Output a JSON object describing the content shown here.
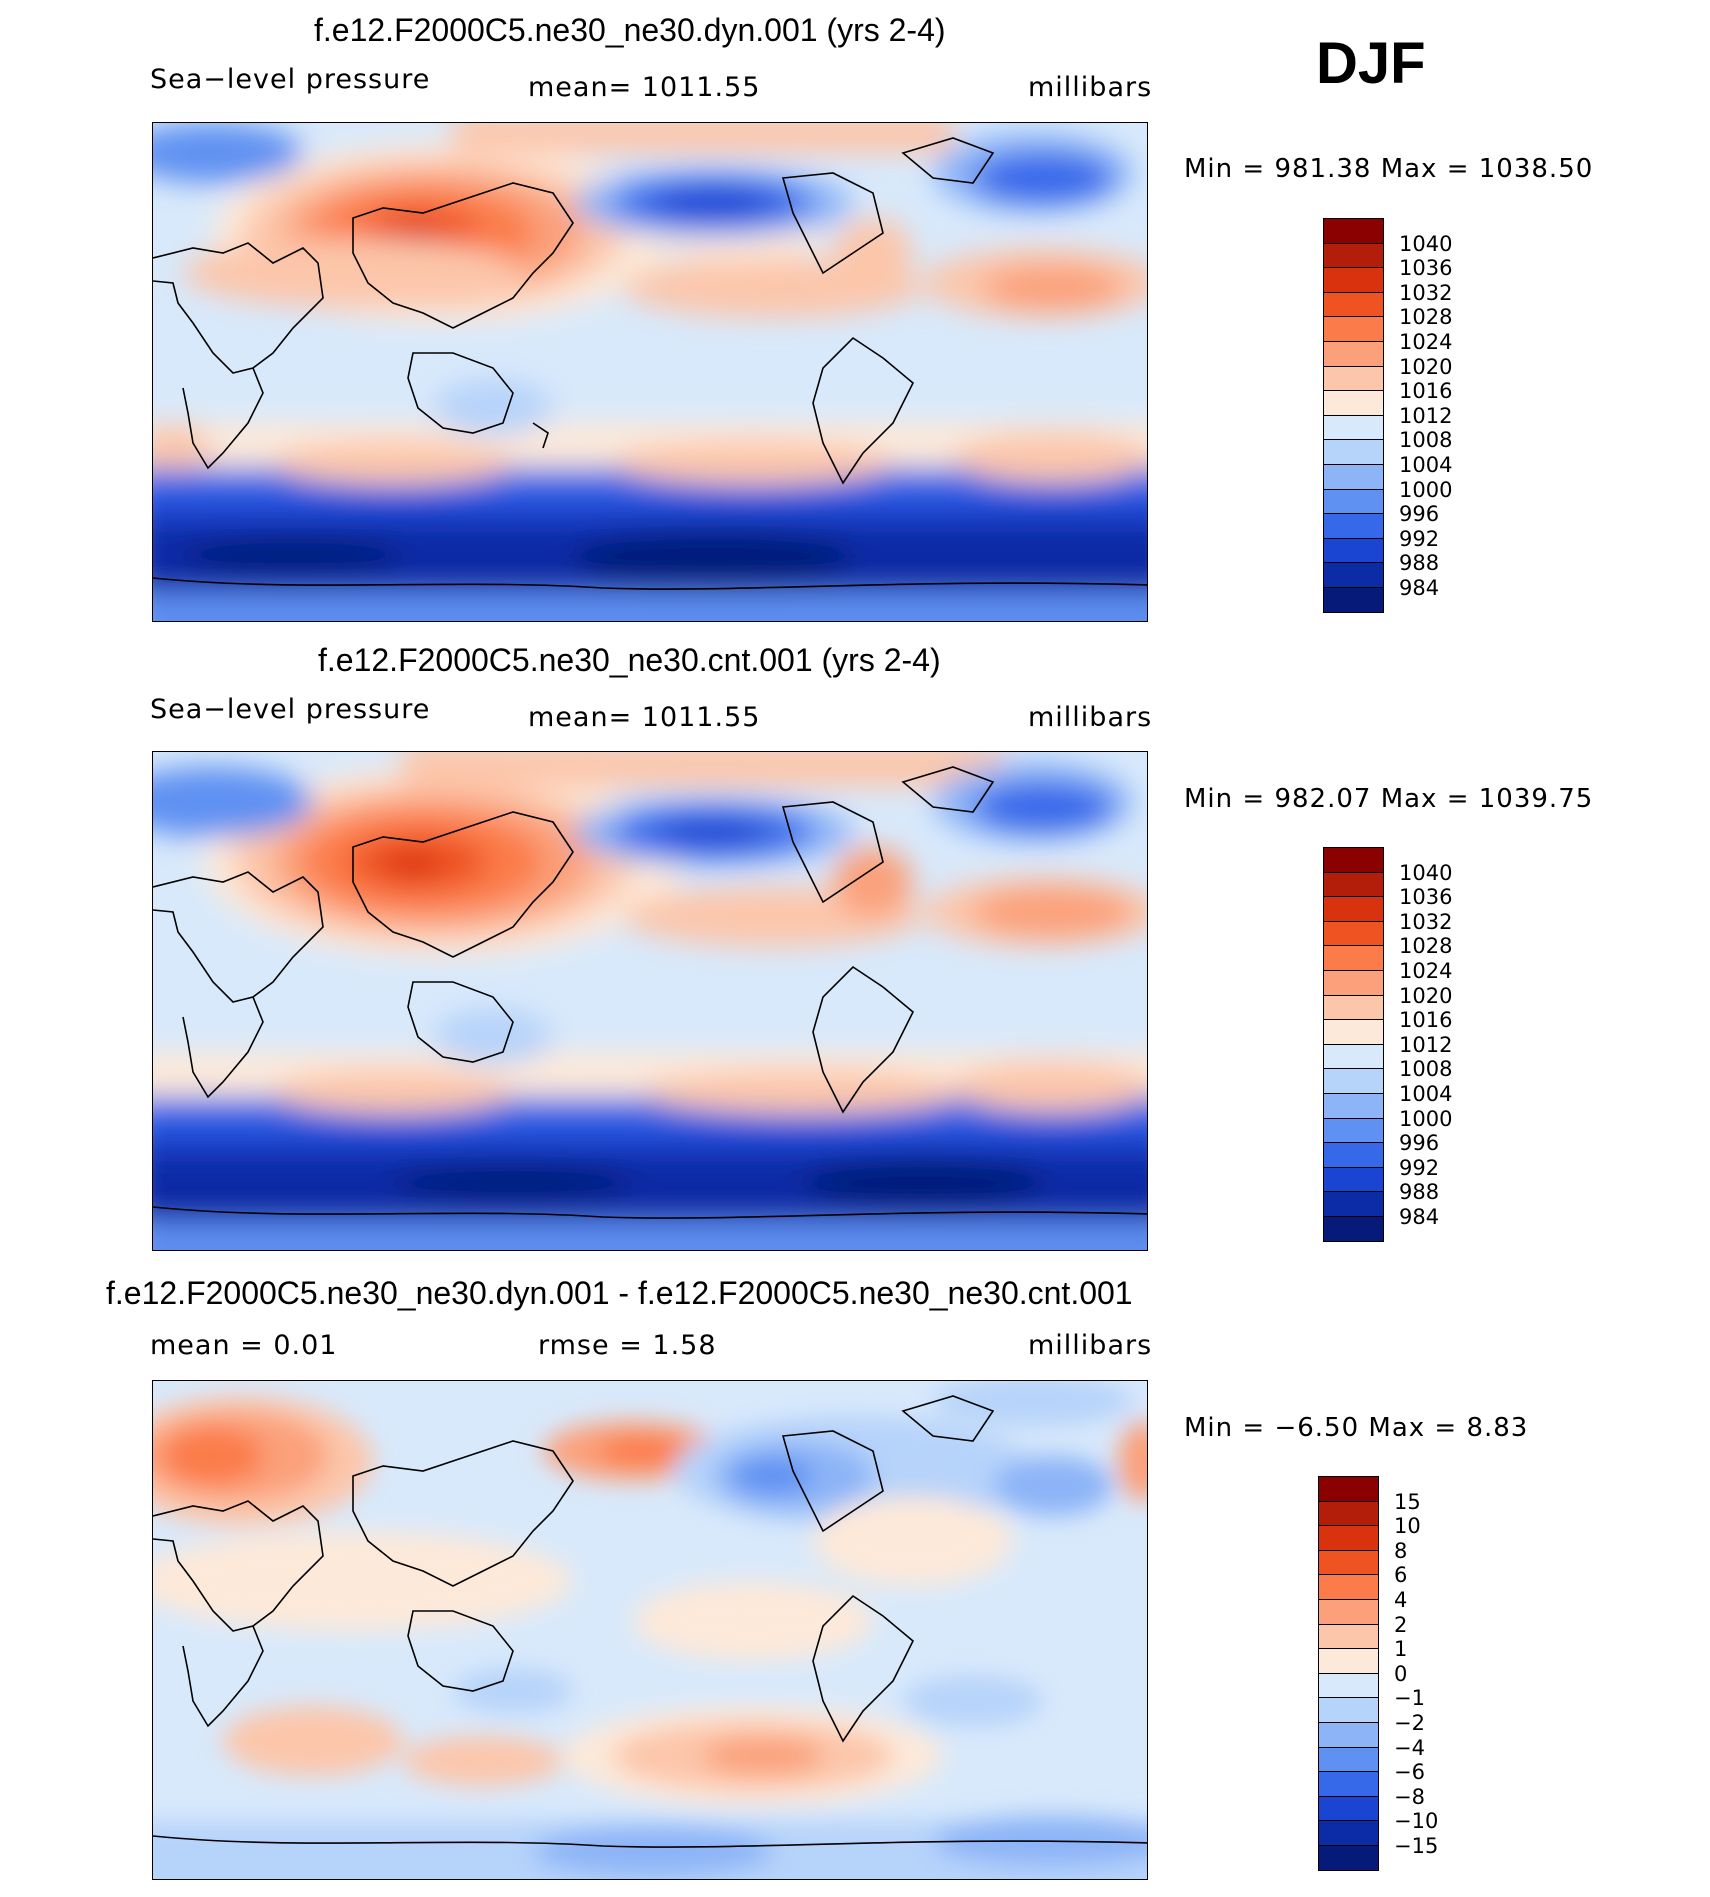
{
  "season": "DJF",
  "panels": [
    {
      "title": "f.e12.F2000C5.ne30_ne30.dyn.001 (yrs 2-4)",
      "left_label": "Sea−level pressure",
      "center_label": "mean=  1011.55",
      "right_label": "millibars",
      "minmax": "Min  =  981.38  Max  =  1038.50"
    },
    {
      "title": "f.e12.F2000C5.ne30_ne30.cnt.001 (yrs 2-4)",
      "left_label": "Sea−level pressure",
      "center_label": "mean=  1011.55",
      "right_label": "millibars",
      "minmax": "Min  =  982.07  Max  =  1039.75"
    },
    {
      "title": "f.e12.F2000C5.ne30_ne30.dyn.001 - f.e12.F2000C5.ne30_ne30.cnt.001",
      "left_label": "mean  =     0.01",
      "center_label": "rmse  =     1.58",
      "right_label": "millibars",
      "minmax": "Min  =   −6.50  Max  =     8.83"
    }
  ],
  "colorbar_abs": {
    "labels": [
      "1040",
      "1036",
      "1032",
      "1028",
      "1024",
      "1020",
      "1016",
      "1012",
      "1008",
      "1004",
      "1000",
      "996",
      "992",
      "988",
      "984"
    ],
    "colors": [
      "#8b0000",
      "#b31e0a",
      "#d9320f",
      "#ef5321",
      "#fb7c4a",
      "#fba07a",
      "#fcc6aa",
      "#fde9d9",
      "#d8e9fb",
      "#b6d3fa",
      "#8cb4f7",
      "#5f91f2",
      "#3668ea",
      "#1a45d2",
      "#0c2ba6",
      "#061a7a"
    ]
  },
  "colorbar_diff": {
    "labels": [
      "15",
      "10",
      "8",
      "6",
      "4",
      "2",
      "1",
      "0",
      "−1",
      "−2",
      "−4",
      "−6",
      "−8",
      "−10",
      "−15"
    ],
    "colors": [
      "#8b0000",
      "#b31e0a",
      "#d9320f",
      "#ef5321",
      "#fb7c4a",
      "#fba07a",
      "#fcc6aa",
      "#fde9d9",
      "#d8e9fb",
      "#b6d3fa",
      "#8cb4f7",
      "#5f91f2",
      "#3668ea",
      "#1a45d2",
      "#0c2ba6",
      "#061a7a"
    ]
  },
  "chart_data": [
    {
      "type": "heatmap",
      "title": "f.e12.F2000C5.ne30_ne30.dyn.001 (yrs 2-4)",
      "variable": "Sea-level pressure",
      "units": "millibars",
      "mean": 1011.55,
      "min": 981.38,
      "max": 1038.5,
      "levels": [
        984,
        988,
        992,
        996,
        1000,
        1004,
        1008,
        1012,
        1016,
        1020,
        1024,
        1028,
        1032,
        1036,
        1040
      ]
    },
    {
      "type": "heatmap",
      "title": "f.e12.F2000C5.ne30_ne30.cnt.001 (yrs 2-4)",
      "variable": "Sea-level pressure",
      "units": "millibars",
      "mean": 1011.55,
      "min": 982.07,
      "max": 1039.75,
      "levels": [
        984,
        988,
        992,
        996,
        1000,
        1004,
        1008,
        1012,
        1016,
        1020,
        1024,
        1028,
        1032,
        1036,
        1040
      ]
    },
    {
      "type": "heatmap",
      "title": "f.e12.F2000C5.ne30_ne30.dyn.001 - f.e12.F2000C5.ne30_ne30.cnt.001",
      "units": "millibars",
      "mean": 0.01,
      "rmse": 1.58,
      "min": -6.5,
      "max": 8.83,
      "levels": [
        -15,
        -10,
        -8,
        -6,
        -4,
        -2,
        -1,
        0,
        1,
        2,
        4,
        6,
        8,
        10,
        15
      ]
    }
  ]
}
